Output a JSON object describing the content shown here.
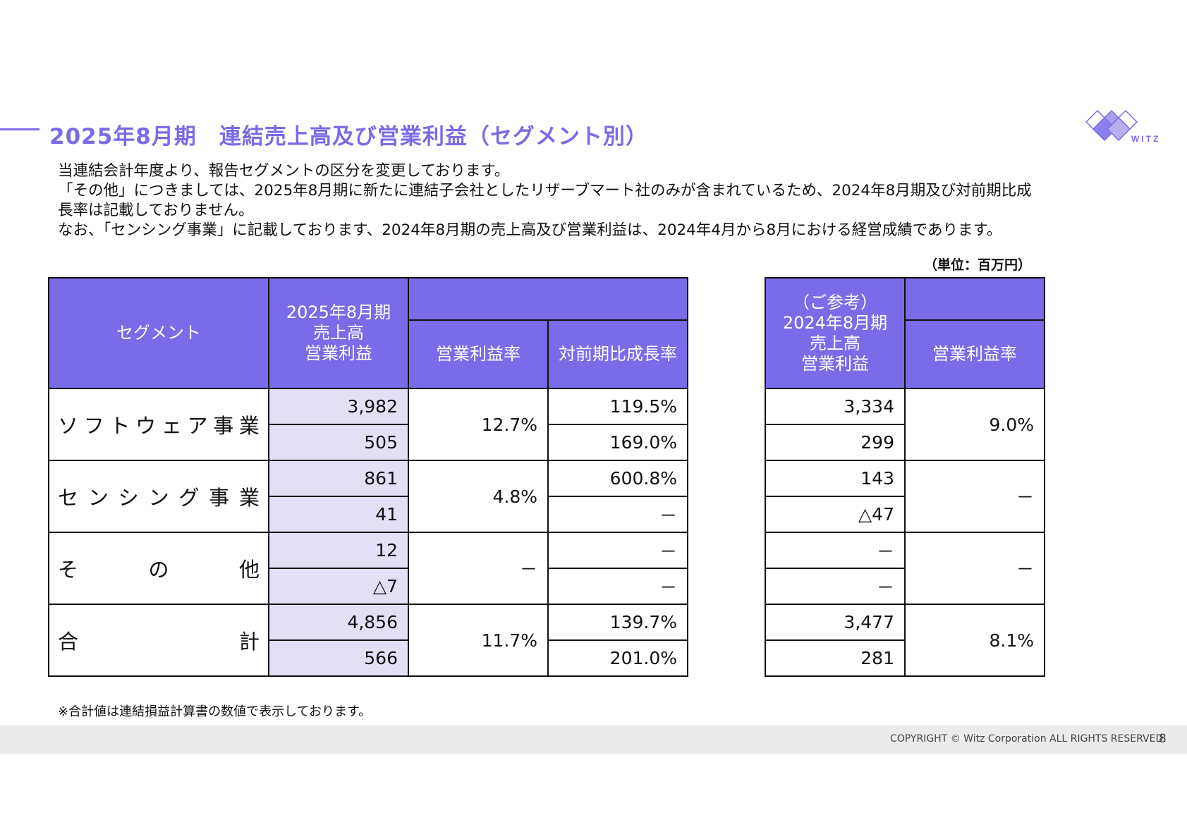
{
  "title": "2025年8月期　連結売上高及び営業利益（セグメント別）",
  "logo_text": "WITZ",
  "intro": [
    "当連結会計年度より、報告セグメントの区分を変更しております。",
    "「その他」につきましては、2025年8月期に新たに連結子会社としたリザーブマート社のみが含まれているため、2024年8月期及び対前期比成",
    "長率は記載しておりません。",
    "なお、「センシング事業」に記載しております、2024年8月期の売上高及び営業利益は、2024年4月から8月における経営成績であります。"
  ],
  "unit": "（単位：百万円）",
  "main_table": {
    "headers": {
      "segment": "セグメント",
      "current_line1": "2025年8月期",
      "current_line2": "売上高",
      "current_line3": "営業利益",
      "margin": "営業利益率",
      "yoy": "対前期比成長率"
    },
    "rows": [
      {
        "name": [
          "ソ",
          "フ",
          "ト",
          "ウ",
          "ェ",
          "ア",
          "事",
          "業"
        ],
        "sales": "3,982",
        "profit": "505",
        "margin": "12.7%",
        "yoy_sales": "119.5%",
        "yoy_profit": "169.0%"
      },
      {
        "name": [
          "セ",
          "ン",
          "シ",
          "ン",
          "グ",
          "事",
          "業"
        ],
        "sales": "861",
        "profit": "41",
        "margin": "4.8%",
        "yoy_sales": "600.8%",
        "yoy_profit": "－"
      },
      {
        "name": [
          "そ",
          "の",
          "他"
        ],
        "sales": "12",
        "profit": "△7",
        "margin": "－",
        "yoy_sales": "－",
        "yoy_profit": "－"
      },
      {
        "name": [
          "合",
          "計"
        ],
        "sales": "4,856",
        "profit": "566",
        "margin": "11.7%",
        "yoy_sales": "139.7%",
        "yoy_profit": "201.0%"
      }
    ]
  },
  "ref_table": {
    "headers": {
      "ref_line1": "（ご参考）",
      "ref_line2": "2024年8月期",
      "ref_line3": "売上高",
      "ref_line4": "営業利益",
      "margin": "営業利益率"
    },
    "rows": [
      {
        "sales": "3,334",
        "profit": "299",
        "margin": "9.0%"
      },
      {
        "sales": "143",
        "profit": "△47",
        "margin": "－"
      },
      {
        "sales": "－",
        "profit": "－",
        "margin": "－"
      },
      {
        "sales": "3,477",
        "profit": "281",
        "margin": "8.1%"
      }
    ]
  },
  "note": "※合計値は連結損益計算書の数値で表示しております。",
  "copyright": "COPYRIGHT © Witz Corporation ALL RIGHTS RESERVED.",
  "page_number": "8",
  "colors": {
    "accent": "#7a6be8",
    "shade": "#e2dff7",
    "footer": "#ebebeb"
  }
}
